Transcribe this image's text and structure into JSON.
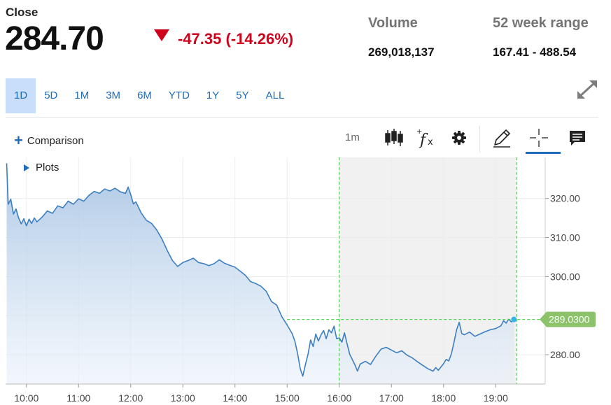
{
  "quote": {
    "close_label": "Close",
    "close_price": "284.70",
    "change": "-47.35 (-14.26%)",
    "volume_label": "Volume",
    "volume_value": "269,018,137",
    "range_label": "52 week range",
    "range_value": "167.41 - 488.54",
    "down_color": "#d0021b"
  },
  "range_tabs": [
    {
      "label": "1D",
      "active": true
    },
    {
      "label": "5D",
      "active": false
    },
    {
      "label": "1M",
      "active": false
    },
    {
      "label": "3M",
      "active": false
    },
    {
      "label": "6M",
      "active": false
    },
    {
      "label": "YTD",
      "active": false
    },
    {
      "label": "1Y",
      "active": false
    },
    {
      "label": "5Y",
      "active": false
    },
    {
      "label": "ALL",
      "active": false
    }
  ],
  "toolbar": {
    "comparison_label": "Comparison",
    "interval_label": "1m",
    "plots_label": "Plots",
    "icons": [
      "candlestick-icon",
      "function-icon",
      "gear-icon",
      "pencil-icon",
      "crosshair-icon",
      "comment-icon"
    ]
  },
  "chart_data": {
    "type": "area",
    "x_unit": "hour",
    "x_ticks": [
      {
        "v": 10,
        "label": "10:00"
      },
      {
        "v": 11,
        "label": "11:00"
      },
      {
        "v": 12,
        "label": "12:00"
      },
      {
        "v": 13,
        "label": "13:00"
      },
      {
        "v": 14,
        "label": "14:00"
      },
      {
        "v": 15,
        "label": "15:00"
      },
      {
        "v": 16,
        "label": "16:00"
      },
      {
        "v": 17,
        "label": "17:00"
      },
      {
        "v": 18,
        "label": "18:00"
      },
      {
        "v": 19,
        "label": "19:00"
      }
    ],
    "y_ticks": [
      {
        "v": 280,
        "label": "280.00"
      },
      {
        "v": 290,
        "label": "290.00"
      },
      {
        "v": 300,
        "label": "300.00"
      },
      {
        "v": 310,
        "label": "310.00"
      },
      {
        "v": 320,
        "label": "320.00"
      }
    ],
    "xlim": [
      9.6,
      19.95
    ],
    "ylim": [
      272.5,
      330.5
    ],
    "shaded_session": [
      16.0,
      19.4
    ],
    "last_value": 289.03,
    "last_value_label": "289.0300",
    "line_color": "#3d7fc0",
    "tag_color": "#8cc26a",
    "points": [
      [
        9.62,
        329.0
      ],
      [
        9.65,
        318.5
      ],
      [
        9.7,
        319.8
      ],
      [
        9.75,
        316.0
      ],
      [
        9.8,
        317.3
      ],
      [
        9.85,
        315.0
      ],
      [
        9.9,
        313.5
      ],
      [
        9.95,
        314.8
      ],
      [
        10.0,
        313.0
      ],
      [
        10.05,
        314.7
      ],
      [
        10.1,
        313.6
      ],
      [
        10.15,
        315.0
      ],
      [
        10.2,
        314.0
      ],
      [
        10.3,
        315.2
      ],
      [
        10.4,
        316.8
      ],
      [
        10.5,
        316.2
      ],
      [
        10.6,
        318.1
      ],
      [
        10.7,
        317.6
      ],
      [
        10.8,
        319.3
      ],
      [
        10.9,
        318.5
      ],
      [
        11.0,
        319.9
      ],
      [
        11.1,
        319.3
      ],
      [
        11.2,
        320.8
      ],
      [
        11.3,
        321.8
      ],
      [
        11.4,
        321.3
      ],
      [
        11.5,
        322.4
      ],
      [
        11.6,
        321.9
      ],
      [
        11.7,
        322.6
      ],
      [
        11.8,
        321.7
      ],
      [
        11.9,
        321.3
      ],
      [
        11.95,
        322.9
      ],
      [
        12.0,
        321.0
      ],
      [
        12.05,
        318.6
      ],
      [
        12.1,
        319.1
      ],
      [
        12.2,
        316.3
      ],
      [
        12.3,
        314.4
      ],
      [
        12.4,
        313.6
      ],
      [
        12.5,
        311.9
      ],
      [
        12.6,
        309.6
      ],
      [
        12.7,
        306.7
      ],
      [
        12.8,
        304.1
      ],
      [
        12.9,
        302.6
      ],
      [
        13.0,
        303.6
      ],
      [
        13.1,
        304.1
      ],
      [
        13.2,
        304.7
      ],
      [
        13.3,
        303.6
      ],
      [
        13.4,
        303.3
      ],
      [
        13.5,
        302.8
      ],
      [
        13.6,
        303.3
      ],
      [
        13.7,
        304.3
      ],
      [
        13.8,
        303.4
      ],
      [
        13.9,
        302.9
      ],
      [
        14.0,
        302.4
      ],
      [
        14.1,
        301.4
      ],
      [
        14.2,
        300.3
      ],
      [
        14.3,
        298.7
      ],
      [
        14.4,
        298.2
      ],
      [
        14.5,
        297.5
      ],
      [
        14.6,
        296.2
      ],
      [
        14.7,
        293.6
      ],
      [
        14.8,
        292.7
      ],
      [
        14.9,
        289.7
      ],
      [
        15.0,
        287.6
      ],
      [
        15.1,
        285.3
      ],
      [
        15.15,
        283.4
      ],
      [
        15.2,
        280.3
      ],
      [
        15.25,
        276.5
      ],
      [
        15.3,
        274.5
      ],
      [
        15.35,
        277.4
      ],
      [
        15.4,
        280.1
      ],
      [
        15.45,
        283.8
      ],
      [
        15.5,
        282.1
      ],
      [
        15.55,
        285.3
      ],
      [
        15.6,
        283.5
      ],
      [
        15.65,
        285.1
      ],
      [
        15.7,
        286.2
      ],
      [
        15.75,
        284.1
      ],
      [
        15.8,
        286.4
      ],
      [
        15.85,
        285.6
      ],
      [
        15.9,
        287.3
      ],
      [
        15.95,
        284.1
      ],
      [
        16.0,
        284.3
      ],
      [
        16.05,
        283.2
      ],
      [
        16.1,
        285.6
      ],
      [
        16.15,
        282.8
      ],
      [
        16.2,
        280.1
      ],
      [
        16.3,
        277.4
      ],
      [
        16.35,
        275.8
      ],
      [
        16.4,
        277.6
      ],
      [
        16.5,
        278.3
      ],
      [
        16.6,
        277.5
      ],
      [
        16.7,
        279.6
      ],
      [
        16.8,
        281.4
      ],
      [
        16.9,
        281.9
      ],
      [
        17.0,
        281.2
      ],
      [
        17.1,
        280.5
      ],
      [
        17.2,
        281.0
      ],
      [
        17.3,
        279.9
      ],
      [
        17.4,
        279.2
      ],
      [
        17.5,
        278.2
      ],
      [
        17.6,
        277.3
      ],
      [
        17.7,
        276.4
      ],
      [
        17.8,
        275.8
      ],
      [
        17.85,
        276.7
      ],
      [
        17.9,
        276.0
      ],
      [
        18.0,
        277.7
      ],
      [
        18.05,
        278.8
      ],
      [
        18.1,
        278.4
      ],
      [
        18.15,
        280.2
      ],
      [
        18.2,
        283.1
      ],
      [
        18.25,
        286.4
      ],
      [
        18.3,
        288.3
      ],
      [
        18.35,
        285.4
      ],
      [
        18.4,
        285.1
      ],
      [
        18.5,
        285.8
      ],
      [
        18.6,
        284.7
      ],
      [
        18.7,
        285.3
      ],
      [
        18.8,
        285.9
      ],
      [
        18.9,
        286.4
      ],
      [
        19.0,
        286.7
      ],
      [
        19.1,
        287.4
      ],
      [
        19.15,
        288.7
      ],
      [
        19.2,
        288.1
      ],
      [
        19.25,
        289.1
      ],
      [
        19.3,
        288.4
      ],
      [
        19.35,
        289.03
      ]
    ]
  }
}
